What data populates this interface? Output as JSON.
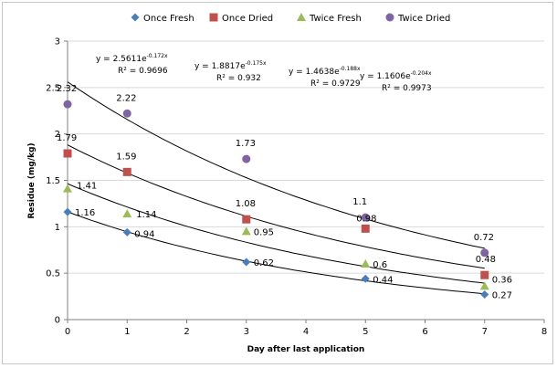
{
  "chart_data": {
    "type": "scatter",
    "title": "",
    "xlabel": "Day after last application",
    "ylabel": "Residue (mg/kg)",
    "xlim": [
      0,
      8
    ],
    "ylim": [
      0,
      3
    ],
    "x_ticks": [
      "0",
      "1",
      "2",
      "3",
      "4",
      "5",
      "6",
      "7",
      "8"
    ],
    "y_ticks": [
      "0",
      "0.5",
      "1",
      "1.5",
      "2",
      "2.5",
      "3"
    ],
    "grid": "horizontal",
    "legend_position": "top",
    "series": [
      {
        "name": "Once Fresh",
        "marker": "diamond",
        "color": "#4a7ebb",
        "x": [
          0,
          1,
          3,
          5,
          7
        ],
        "y": [
          1.16,
          0.94,
          0.62,
          0.44,
          0.27
        ],
        "labels": [
          "1.16",
          "0.94",
          "0.62",
          "0.44",
          "0.27"
        ],
        "trend": {
          "a": 1.1606,
          "b": 0.204,
          "equation": "y = 1.1606e",
          "exponent": "-0.204x",
          "r2": "R² = 0.9973"
        }
      },
      {
        "name": "Once Dried",
        "marker": "square",
        "color": "#c0504d",
        "x": [
          0,
          1,
          3,
          5,
          7
        ],
        "y": [
          1.79,
          1.59,
          1.08,
          0.98,
          0.48
        ],
        "labels": [
          "1.79",
          "1.59",
          "1.08",
          "0.98",
          "0.48"
        ],
        "trend": {
          "a": 1.8817,
          "b": 0.175,
          "equation": "y = 1.8817e",
          "exponent": "-0.175x",
          "r2": "R² = 0.932"
        }
      },
      {
        "name": "Twice Fresh",
        "marker": "triangle",
        "color": "#9bbb59",
        "x": [
          0,
          1,
          3,
          5,
          7
        ],
        "y": [
          1.41,
          1.14,
          0.95,
          0.6,
          0.36
        ],
        "labels": [
          "1.41",
          "1.14",
          "0.95",
          "0.6",
          "0.36"
        ],
        "trend": {
          "a": 1.4638,
          "b": 0.188,
          "equation": "y = 1.4638e",
          "exponent": "-0.188x",
          "r2": "R² = 0.9729"
        }
      },
      {
        "name": "Twice Dried",
        "marker": "circle",
        "color": "#8064a2",
        "x": [
          0,
          1,
          3,
          5,
          7
        ],
        "y": [
          2.32,
          2.22,
          1.73,
          1.1,
          0.72
        ],
        "labels": [
          "2.32",
          "2.22",
          "1.73",
          "1.1",
          "0.72"
        ],
        "trend": {
          "a": 2.5611,
          "b": 0.172,
          "equation": "y = 2.5611e",
          "exponent": "-0.172x",
          "r2": "R² = 0.9696"
        }
      }
    ]
  }
}
